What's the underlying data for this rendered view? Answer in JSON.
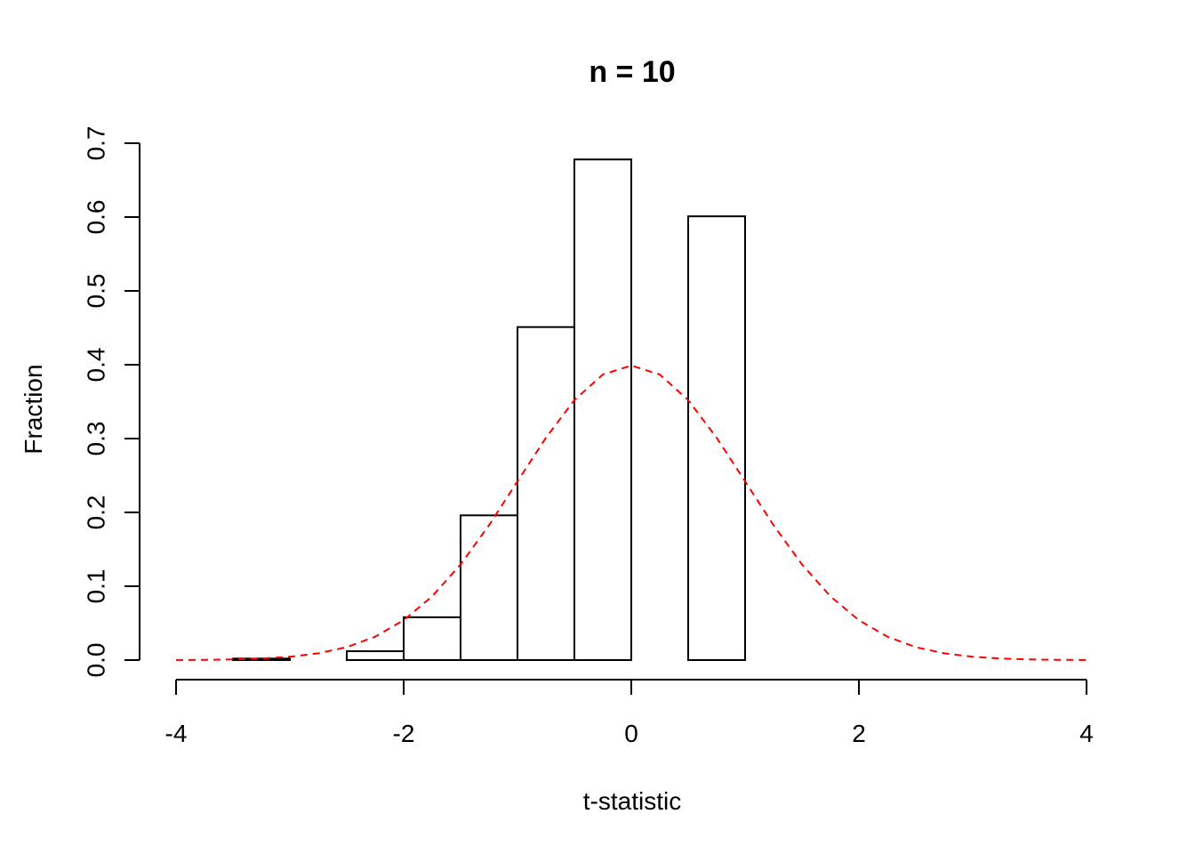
{
  "chart_data": {
    "type": "bar",
    "subtype": "histogram",
    "title": "n = 10",
    "xlabel": "t-statistic",
    "ylabel": "Fraction",
    "xlim": [
      -4,
      4
    ],
    "ylim": [
      0,
      0.7
    ],
    "x_ticks": [
      -4,
      -2,
      0,
      2,
      4
    ],
    "x_tick_labels": [
      "-4",
      "-2",
      "0",
      "2",
      "4"
    ],
    "y_ticks": [
      0,
      0.1,
      0.2,
      0.3,
      0.4,
      0.5,
      0.6,
      0.7
    ],
    "y_tick_labels": [
      "0.0",
      "0.1",
      "0.2",
      "0.3",
      "0.4",
      "0.5",
      "0.6",
      "0.7"
    ],
    "grid": false,
    "series": [
      {
        "type": "histogram",
        "bin_edges": [
          -3.5,
          -3.0,
          -2.5,
          -2.0,
          -1.5,
          -1.0,
          -0.5,
          0.0,
          0.5,
          1.0
        ],
        "values": [
          0.002,
          0.0,
          0.012,
          0.058,
          0.196,
          0.451,
          0.678,
          0.0,
          0.601
        ],
        "color": "#000000"
      },
      {
        "type": "line",
        "style": "dashed",
        "color": "#ff0000",
        "x": [
          -4.0,
          -3.75,
          -3.5,
          -3.25,
          -3.0,
          -2.75,
          -2.5,
          -2.25,
          -2.0,
          -1.75,
          -1.5,
          -1.25,
          -1.0,
          -0.75,
          -0.5,
          -0.25,
          0.0,
          0.25,
          0.5,
          0.75,
          1.0,
          1.25,
          1.5,
          1.75,
          2.0,
          2.25,
          2.5,
          2.75,
          3.0,
          3.25,
          3.5,
          3.75,
          4.0
        ],
        "y": [
          0.0001,
          0.0004,
          0.0009,
          0.002,
          0.0044,
          0.0091,
          0.0175,
          0.0317,
          0.054,
          0.0863,
          0.1295,
          0.1826,
          0.242,
          0.3011,
          0.3521,
          0.3867,
          0.3989,
          0.3867,
          0.3521,
          0.3011,
          0.242,
          0.1826,
          0.1295,
          0.0863,
          0.054,
          0.0317,
          0.0175,
          0.0091,
          0.0044,
          0.002,
          0.0009,
          0.0004,
          0.0001
        ]
      }
    ]
  }
}
